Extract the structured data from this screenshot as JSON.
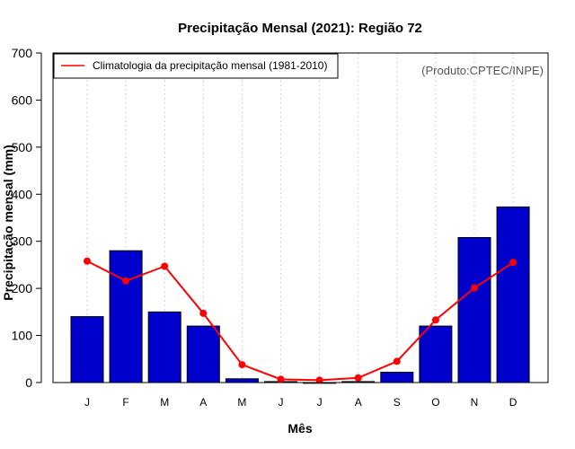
{
  "chart_data": {
    "type": "bar",
    "title": "Precipitação Mensal (2021): Região 72",
    "xlabel": "Mês",
    "ylabel": "Precipitação mensal (mm)",
    "categories": [
      "J",
      "F",
      "M",
      "A",
      "M",
      "J",
      "J",
      "A",
      "S",
      "O",
      "N",
      "D"
    ],
    "ylim": [
      0,
      700
    ],
    "yticks": [
      0,
      100,
      200,
      300,
      400,
      500,
      600,
      700
    ],
    "grid": "vertical dotted",
    "series": [
      {
        "name": "Precipitação mensal 2021",
        "kind": "bar",
        "color": "#0000cd",
        "values": [
          140,
          280,
          150,
          120,
          8,
          2,
          0,
          2,
          22,
          120,
          308,
          373
        ]
      },
      {
        "name": "Climatologia da precipitação mensal (1981-2010)",
        "kind": "line",
        "color": "#ff0000",
        "values": [
          258,
          216,
          247,
          147,
          38,
          7,
          5,
          10,
          45,
          133,
          201,
          255
        ]
      }
    ],
    "legend": {
      "position": "top-left",
      "label": "Climatologia da precipitação mensal (1981-2010)"
    },
    "annotation": "(Produto:CPTEC/INPE)"
  }
}
